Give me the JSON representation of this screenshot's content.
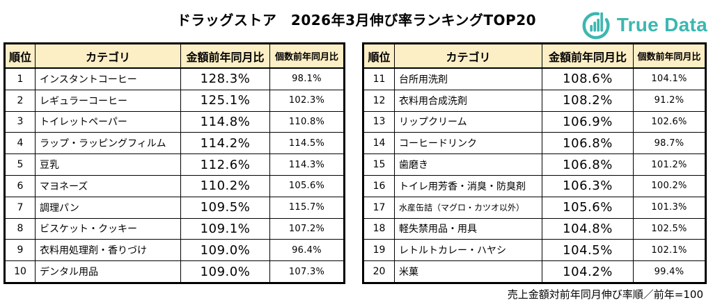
{
  "title": "ドラッグストア　2026年3月伸び率ランキングTOP20",
  "logo": {
    "text": "True Data",
    "icon": "bar-chart-ring-icon"
  },
  "headers": {
    "rank": "順位",
    "category": "カテゴリ",
    "amount": "金額前年同月比",
    "count": "個数前年同月比"
  },
  "tables": {
    "left": {
      "rows": [
        {
          "rank": "1",
          "category": "インスタントコーヒー",
          "amount": "128.3%",
          "count": "98.1%"
        },
        {
          "rank": "2",
          "category": "レギュラーコーヒー",
          "amount": "125.1%",
          "count": "102.3%"
        },
        {
          "rank": "3",
          "category": "トイレットペーパー",
          "amount": "114.8%",
          "count": "110.8%"
        },
        {
          "rank": "4",
          "category": "ラップ・ラッピングフィルム",
          "amount": "114.2%",
          "count": "114.5%"
        },
        {
          "rank": "5",
          "category": "豆乳",
          "amount": "112.6%",
          "count": "114.3%"
        },
        {
          "rank": "6",
          "category": "マヨネーズ",
          "amount": "110.2%",
          "count": "105.6%"
        },
        {
          "rank": "7",
          "category": "調理パン",
          "amount": "109.5%",
          "count": "115.7%"
        },
        {
          "rank": "8",
          "category": "ビスケット・クッキー",
          "amount": "109.1%",
          "count": "107.2%"
        },
        {
          "rank": "9",
          "category": "衣料用処理剤・香りづけ",
          "amount": "109.0%",
          "count": "96.4%"
        },
        {
          "rank": "10",
          "category": "デンタル用品",
          "amount": "109.0%",
          "count": "107.3%"
        }
      ]
    },
    "right": {
      "rows": [
        {
          "rank": "11",
          "category": "台所用洗剤",
          "amount": "108.6%",
          "count": "104.1%"
        },
        {
          "rank": "12",
          "category": "衣料用合成洗剤",
          "amount": "108.2%",
          "count": "91.2%"
        },
        {
          "rank": "13",
          "category": "リップクリーム",
          "amount": "106.9%",
          "count": "102.6%"
        },
        {
          "rank": "14",
          "category": "コーヒードリンク",
          "amount": "106.8%",
          "count": "98.7%"
        },
        {
          "rank": "15",
          "category": "歯磨き",
          "amount": "106.8%",
          "count": "101.2%"
        },
        {
          "rank": "16",
          "category": "トイレ用芳香・消臭・防臭剤",
          "amount": "106.3%",
          "count": "100.2%"
        },
        {
          "rank": "17",
          "category": "水産缶詰（マグロ・カツオ以外）",
          "amount": "105.6%",
          "count": "101.3%"
        },
        {
          "rank": "18",
          "category": "軽失禁用品・用具",
          "amount": "104.8%",
          "count": "102.5%"
        },
        {
          "rank": "19",
          "category": "レトルトカレー・ハヤシ",
          "amount": "104.5%",
          "count": "102.1%"
        },
        {
          "rank": "20",
          "category": "米菓",
          "amount": "104.2%",
          "count": "99.4%"
        }
      ]
    }
  },
  "footer_note": "売上金額対前年同月伸び率順／前年=100",
  "colors": {
    "header_bg": "#FCEEC5",
    "logo_teal": "#3CB7B0",
    "border": "#000000"
  },
  "chart_data": {
    "type": "table",
    "title": "ドラッグストア　2026年3月伸び率ランキングTOP20",
    "columns": [
      "順位",
      "カテゴリ",
      "金額前年同月比",
      "個数前年同月比"
    ],
    "rows": [
      [
        "1",
        "インスタントコーヒー",
        "128.3%",
        "98.1%"
      ],
      [
        "2",
        "レギュラーコーヒー",
        "125.1%",
        "102.3%"
      ],
      [
        "3",
        "トイレットペーパー",
        "114.8%",
        "110.8%"
      ],
      [
        "4",
        "ラップ・ラッピングフィルム",
        "114.2%",
        "114.5%"
      ],
      [
        "5",
        "豆乳",
        "112.6%",
        "114.3%"
      ],
      [
        "6",
        "マヨネーズ",
        "110.2%",
        "105.6%"
      ],
      [
        "7",
        "調理パン",
        "109.5%",
        "115.7%"
      ],
      [
        "8",
        "ビスケット・クッキー",
        "109.1%",
        "107.2%"
      ],
      [
        "9",
        "衣料用処理剤・香りづけ",
        "109.0%",
        "96.4%"
      ],
      [
        "10",
        "デンタル用品",
        "109.0%",
        "107.3%"
      ],
      [
        "11",
        "台所用洗剤",
        "108.6%",
        "104.1%"
      ],
      [
        "12",
        "衣料用合成洗剤",
        "108.2%",
        "91.2%"
      ],
      [
        "13",
        "リップクリーム",
        "106.9%",
        "102.6%"
      ],
      [
        "14",
        "コーヒードリンク",
        "106.8%",
        "98.7%"
      ],
      [
        "15",
        "歯磨き",
        "106.8%",
        "101.2%"
      ],
      [
        "16",
        "トイレ用芳香・消臭・防臭剤",
        "106.3%",
        "100.2%"
      ],
      [
        "17",
        "水産缶詰（マグロ・カツオ以外）",
        "105.6%",
        "101.3%"
      ],
      [
        "18",
        "軽失禁用品・用具",
        "104.8%",
        "102.5%"
      ],
      [
        "19",
        "レトルトカレー・ハヤシ",
        "104.5%",
        "102.1%"
      ],
      [
        "20",
        "米菓",
        "104.2%",
        "99.4%"
      ]
    ]
  }
}
